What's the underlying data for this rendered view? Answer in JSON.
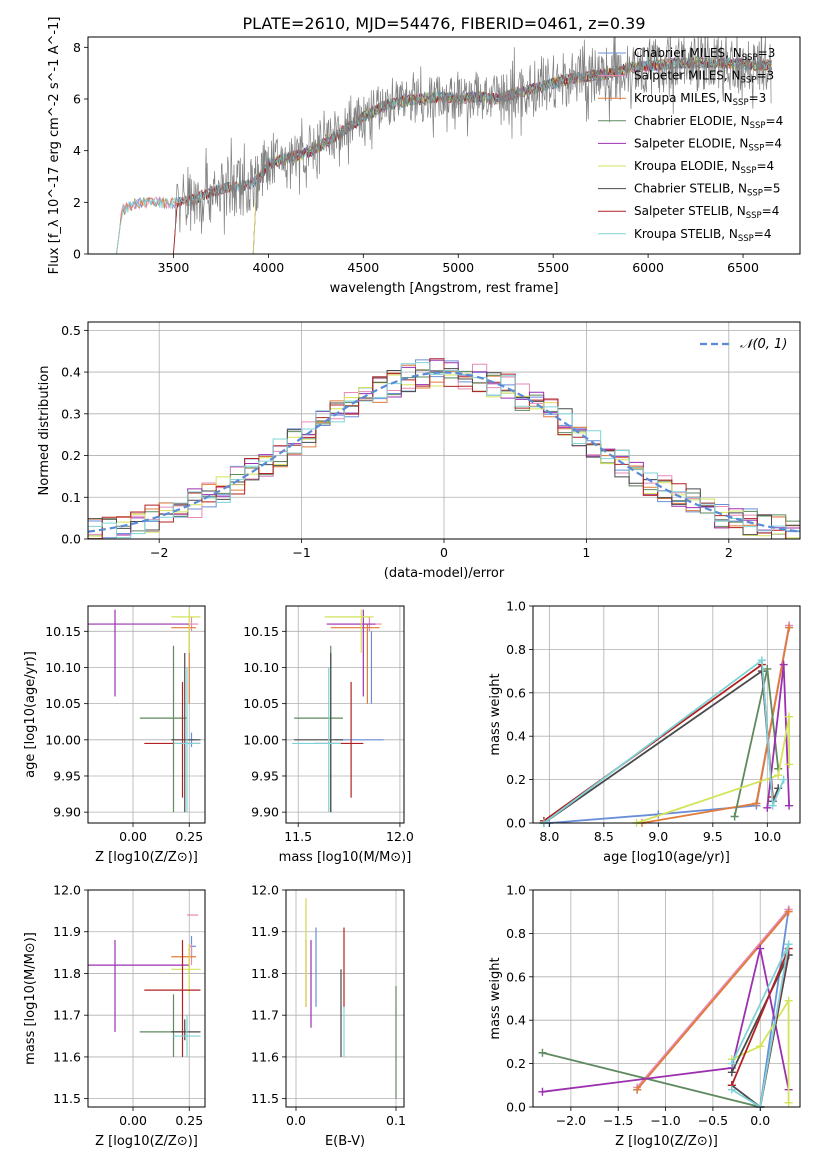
{
  "title": "PLATE=2610, MJD=54476, FIBERID=0461, z=0.39",
  "colors": {
    "Chabrier MILES": "#6a8fd8",
    "Salpeter MILES": "#e88ab8",
    "Kroupa MILES": "#e07b39",
    "Chabrier ELODIE": "#5e8a5e",
    "Salpeter ELODIE": "#9b30b0",
    "Kroupa ELODIE": "#d4e35a",
    "Chabrier STELIB": "#4a4a4a",
    "Salpeter STELIB": "#b22222",
    "Kroupa STELIB": "#7fd3d8",
    "observed": "#808080"
  },
  "chart_data": [
    {
      "id": "spectrum",
      "type": "line",
      "title": "PLATE=2610, MJD=54476, FIBERID=0461, z=0.39",
      "xlabel": "wavelength [Angstrom, rest frame]",
      "ylabel": "Flux [f_λ 10^-17 erg cm^-2 s^-1 A^-1]",
      "xlim": [
        3050,
        6800
      ],
      "ylim": [
        0,
        8.4
      ],
      "xticks": [
        3500,
        4000,
        4500,
        5000,
        5500,
        6000,
        6500
      ],
      "yticks": [
        0,
        2,
        4,
        6,
        8
      ],
      "grid": false,
      "legend_position": "top-right",
      "legend": [
        {
          "label": "Chabrier MILES, N",
          "sub": "SSP",
          "tail": "=3"
        },
        {
          "label": "Salpeter MILES, N",
          "sub": "SSP",
          "tail": "=3"
        },
        {
          "label": "Kroupa MILES, N",
          "sub": "SSP",
          "tail": "=3"
        },
        {
          "label": "Chabrier ELODIE, N",
          "sub": "SSP",
          "tail": "=4"
        },
        {
          "label": "Salpeter ELODIE, N",
          "sub": "SSP",
          "tail": "=4"
        },
        {
          "label": "Kroupa ELODIE, N",
          "sub": "SSP",
          "tail": "=4"
        },
        {
          "label": "Chabrier STELIB, N",
          "sub": "SSP",
          "tail": "=5"
        },
        {
          "label": "Salpeter STELIB, N",
          "sub": "SSP",
          "tail": "=4"
        },
        {
          "label": "Kroupa STELIB, N",
          "sub": "SSP",
          "tail": "=4"
        }
      ],
      "continuum": {
        "x": [
          3200,
          3230,
          3300,
          3400,
          3500,
          3600,
          3700,
          3800,
          3900,
          3950,
          4000,
          4100,
          4200,
          4300,
          4400,
          4500,
          4600,
          4700,
          4800,
          4900,
          5000,
          5100,
          5200,
          5300,
          5400,
          5500,
          5600,
          5700,
          5800,
          5900,
          6000,
          6200,
          6400,
          6600
        ],
        "y": [
          0,
          1.7,
          1.95,
          2.0,
          1.95,
          2.1,
          2.4,
          2.6,
          2.7,
          2.9,
          3.5,
          3.7,
          3.9,
          4.3,
          4.8,
          5.3,
          5.7,
          5.9,
          6.0,
          6.1,
          6.0,
          6.1,
          6.0,
          6.2,
          6.4,
          6.6,
          6.8,
          6.9,
          7.0,
          7.2,
          7.3,
          7.4,
          7.4,
          7.3
        ]
      }
    },
    {
      "id": "residuals",
      "type": "line",
      "xlabel": "(data-model)/error",
      "ylabel": "Normed distribution",
      "xlim": [
        -2.5,
        2.5
      ],
      "ylim": [
        0,
        0.52
      ],
      "xticks": [
        -2,
        -1,
        0,
        1,
        2
      ],
      "yticks": [
        0.0,
        0.1,
        0.2,
        0.3,
        0.4,
        0.5
      ],
      "grid": true,
      "legend_position": "top-right",
      "reference": {
        "label": "𝒩(0, 1)",
        "mu": 0,
        "sigma": 1
      }
    },
    {
      "id": "age-Z",
      "type": "scatter",
      "xlabel": "Z [log10(Z/Z⊙)]",
      "ylabel": "age [log10(age/yr)]",
      "xlim": [
        -0.2,
        0.32
      ],
      "ylim": [
        9.885,
        10.185
      ],
      "xticks": [
        0.0,
        0.25
      ],
      "yticks": [
        9.9,
        9.95,
        10.0,
        10.05,
        10.1,
        10.15
      ],
      "grid": true
    },
    {
      "id": "age-mass",
      "type": "scatter",
      "xlabel": "mass [log10(M/M⊙)]",
      "xlim": [
        11.44,
        12.02
      ],
      "ylim": [
        9.885,
        10.185
      ],
      "xticks": [
        11.5,
        12.0
      ],
      "yticks": [
        9.9,
        9.95,
        10.0,
        10.05,
        10.1,
        10.15
      ],
      "grid": true
    },
    {
      "id": "weight-age",
      "type": "line",
      "xlabel": "age  [log10(age/yr)]",
      "ylabel": "mass weight",
      "xlim": [
        7.85,
        10.3
      ],
      "ylim": [
        0,
        1.0
      ],
      "xticks": [
        8.0,
        8.5,
        9.0,
        9.5,
        10.0
      ],
      "yticks": [
        0.0,
        0.2,
        0.4,
        0.6,
        0.8,
        1.0
      ],
      "grid": true
    },
    {
      "id": "mass-Z",
      "type": "scatter",
      "xlabel": "Z [log10(Z/Z⊙)]",
      "ylabel": "mass [log10(M/M⊙)]",
      "xlim": [
        -0.2,
        0.32
      ],
      "ylim": [
        11.48,
        12.0
      ],
      "xticks": [
        0.0,
        0.25
      ],
      "yticks": [
        11.5,
        11.6,
        11.7,
        11.8,
        11.9,
        12.0
      ],
      "grid": true
    },
    {
      "id": "mass-ebv",
      "type": "scatter",
      "xlabel": "E(B-V)",
      "xlim": [
        -0.01,
        0.108
      ],
      "ylim": [
        11.48,
        12.0
      ],
      "xticks": [
        0.0,
        0.1
      ],
      "yticks": [
        11.5,
        11.6,
        11.7,
        11.8,
        11.9,
        12.0
      ],
      "grid": true
    },
    {
      "id": "weight-Z",
      "type": "line",
      "xlabel": "Z [log10(Z/Z⊙)]",
      "ylabel": "mass weight",
      "xlim": [
        -2.4,
        0.42
      ],
      "ylim": [
        0,
        1.0
      ],
      "xticks": [
        -2.0,
        -1.5,
        -1.0,
        -0.5,
        0.0
      ],
      "yticks": [
        0.0,
        0.2,
        0.4,
        0.6,
        0.8,
        1.0
      ],
      "grid": true
    }
  ],
  "models": [
    {
      "name": "Chabrier MILES",
      "color": "#6a8fd8",
      "Z": [
        0.26,
        0.2,
        0.3
      ],
      "age": [
        10.0,
        9.99,
        10.01
      ],
      "age_Zerr": [
        0.25,
        0.28
      ],
      "age_Aerr": [
        9.99,
        10.01
      ],
      "mass_v": 11.865,
      "mass_err": [
        11.72,
        11.9
      ],
      "ebv": 0.02,
      "ebv_err": [
        11.72,
        11.91
      ],
      "age_Mass": 11.86,
      "age_Merr": [
        11.84,
        11.89
      ],
      "age_Merr_a": [
        10.05,
        10.15
      ],
      "wage": [
        [
          8.0,
          0.0
        ],
        [
          9.0,
          0.04
        ],
        [
          9.9,
          0.08
        ],
        [
          10.2,
          0.91
        ]
      ],
      "wZ": [
        [
          -1.3,
          0.08
        ],
        [
          0.3,
          0.91
        ],
        [
          0.0,
          0.0
        ]
      ]
    },
    {
      "name": "Salpeter MILES",
      "color": "#e88ab8",
      "Z": [
        0.26
      ],
      "age": [
        10.16
      ],
      "age_Zerr": [
        0.24,
        0.29
      ],
      "age_Aerr": [
        10.15,
        10.17
      ],
      "mass_v": 11.94,
      "mass_err": [
        11.72,
        11.98
      ],
      "ebv": 0.01,
      "ebv_err": [
        11.72,
        11.98
      ],
      "age_Mass": 11.85,
      "age_Merr": [
        11.82,
        11.87
      ],
      "age_Merr_a": [
        10.15,
        10.17
      ],
      "wage": [
        [
          9.9,
          0.09
        ],
        [
          10.2,
          0.91
        ]
      ],
      "wZ": [
        [
          -1.3,
          0.09
        ],
        [
          0.3,
          0.91
        ]
      ]
    },
    {
      "name": "Kroupa MILES",
      "color": "#e07b39",
      "Z": [
        0.25
      ],
      "age": [
        10.155
      ],
      "age_Zerr": [
        0.17,
        0.28
      ],
      "age_Aerr": [
        10.05,
        10.16
      ],
      "mass_v": 11.84,
      "mass_err": [
        11.72,
        11.88
      ],
      "ebv": 0.01,
      "ebv_err": [
        11.72,
        11.88
      ],
      "age_Mass": 11.84,
      "age_Merr": [
        11.8,
        11.87
      ],
      "age_Merr_a": [
        10.05,
        10.16
      ],
      "wage": [
        [
          8.85,
          0.0
        ],
        [
          9.9,
          0.09
        ],
        [
          10.2,
          0.9
        ]
      ],
      "wZ": [
        [
          -1.3,
          0.08
        ],
        [
          0.3,
          0.9
        ]
      ]
    },
    {
      "name": "Chabrier ELODIE",
      "color": "#5e8a5e",
      "Z": [
        0.18
      ],
      "age": [
        10.03
      ],
      "age_Zerr": [
        0.03,
        0.24
      ],
      "age_Aerr": [
        9.9,
        10.13
      ],
      "mass_v": 11.66,
      "mass_err": [
        11.5,
        11.81
      ],
      "ebv": 0.1,
      "ebv_err": [
        11.5,
        11.77
      ],
      "age_Mass": 11.66,
      "age_Merr": [
        11.6,
        11.75
      ],
      "age_Merr_a": [
        9.9,
        10.13
      ],
      "wage": [
        [
          9.7,
          0.03
        ],
        [
          10.0,
          0.71
        ],
        [
          10.1,
          0.25
        ]
      ],
      "wZ": [
        [
          -2.3,
          0.25
        ],
        [
          0.0,
          0.0
        ],
        [
          0.3,
          0.7
        ]
      ]
    },
    {
      "name": "Salpeter ELODIE",
      "color": "#9b30b0",
      "Z": [
        -0.08
      ],
      "age": [
        10.16
      ],
      "age_Zerr": [
        -0.2,
        0.25
      ],
      "age_Aerr": [
        10.06,
        10.18
      ],
      "mass_v": 11.82,
      "mass_err": [
        11.67,
        11.88
      ],
      "ebv": 0.015,
      "ebv_err": [
        11.67,
        11.88
      ],
      "age_Mass": 11.82,
      "age_Merr": [
        11.66,
        11.88
      ],
      "age_Merr_a": [
        10.06,
        10.18
      ],
      "wage": [
        [
          10.0,
          0.07
        ],
        [
          10.15,
          0.73
        ],
        [
          10.2,
          0.08
        ]
      ],
      "wZ": [
        [
          -2.3,
          0.07
        ],
        [
          -0.3,
          0.18
        ],
        [
          0.0,
          0.73
        ],
        [
          0.3,
          0.08
        ]
      ]
    },
    {
      "name": "Kroupa ELODIE",
      "color": "#d4e35a",
      "Z": [
        0.25
      ],
      "age": [
        10.17
      ],
      "age_Zerr": [
        0.17,
        0.3
      ],
      "age_Aerr": [
        10.12,
        10.18
      ],
      "mass_v": 11.81,
      "mass_err": [
        11.72,
        11.98
      ],
      "ebv": 0.01,
      "ebv_err": [
        11.72,
        11.98
      ],
      "age_Mass": 11.81,
      "age_Merr": [
        11.75,
        11.87
      ],
      "age_Merr_a": [
        10.12,
        10.18
      ],
      "wage": [
        [
          8.8,
          0.0
        ],
        [
          10.1,
          0.22
        ],
        [
          10.2,
          0.49
        ],
        [
          10.2,
          0.27
        ]
      ],
      "wZ": [
        [
          -0.3,
          0.22
        ],
        [
          0.0,
          0.28
        ],
        [
          0.3,
          0.49
        ],
        [
          0.3,
          0.02
        ]
      ]
    },
    {
      "name": "Chabrier STELIB",
      "color": "#4a4a4a",
      "Z": [
        0.23
      ],
      "age": [
        10.0
      ],
      "age_Zerr": [
        0.17,
        0.3
      ],
      "age_Aerr": [
        9.9,
        10.12
      ],
      "mass_v": 11.66,
      "mass_err": [
        11.5,
        11.8
      ],
      "ebv": 0.045,
      "ebv_err": [
        11.6,
        11.81
      ],
      "age_Mass": 11.66,
      "age_Merr": [
        11.64,
        11.69
      ],
      "age_Merr_a": [
        9.9,
        10.12
      ],
      "wage": [
        [
          7.95,
          0.0
        ],
        [
          9.95,
          0.7
        ],
        [
          10.05,
          0.1
        ],
        [
          10.1,
          0.16
        ]
      ],
      "wZ": [
        [
          -0.3,
          0.1
        ],
        [
          0.0,
          0.0
        ],
        [
          0.3,
          0.7
        ],
        [
          -0.3,
          0.16
        ]
      ]
    },
    {
      "name": "Salpeter STELIB",
      "color": "#b22222",
      "Z": [
        0.22
      ],
      "age": [
        9.995
      ],
      "age_Zerr": [
        0.05,
        0.3
      ],
      "age_Aerr": [
        9.92,
        10.08
      ],
      "mass_v": 11.76,
      "mass_err": [
        11.72,
        11.8
      ],
      "ebv": 0.048,
      "ebv_err": [
        11.72,
        11.91
      ],
      "age_Mass": 11.76,
      "age_Merr": [
        11.6,
        11.88
      ],
      "age_Merr_a": [
        9.92,
        10.08
      ],
      "wage": [
        [
          7.95,
          0.01
        ],
        [
          9.95,
          0.73
        ],
        [
          10.05,
          0.12
        ]
      ],
      "wZ": [
        [
          0.0,
          0.0
        ],
        [
          0.3,
          0.73
        ],
        [
          -0.3,
          0.1
        ]
      ]
    },
    {
      "name": "Kroupa STELIB",
      "color": "#7fd3d8",
      "Z": [
        0.24
      ],
      "age": [
        9.995
      ],
      "age_Zerr": [
        0.18,
        0.3
      ],
      "age_Aerr": [
        9.9,
        10.1
      ],
      "mass_v": 11.65,
      "mass_err": [
        11.6,
        11.7
      ],
      "ebv": 0.048,
      "ebv_err": [
        11.6,
        11.72
      ],
      "age_Mass": 11.65,
      "age_Merr": [
        11.6,
        11.7
      ],
      "age_Merr_a": [
        9.9,
        10.1
      ],
      "wage": [
        [
          7.95,
          0.0
        ],
        [
          9.95,
          0.75
        ],
        [
          10.05,
          0.08
        ],
        [
          10.15,
          0.2
        ]
      ],
      "wZ": [
        [
          -0.3,
          0.08
        ],
        [
          0.0,
          0.0
        ],
        [
          0.3,
          0.75
        ],
        [
          -0.3,
          0.2
        ]
      ]
    }
  ]
}
